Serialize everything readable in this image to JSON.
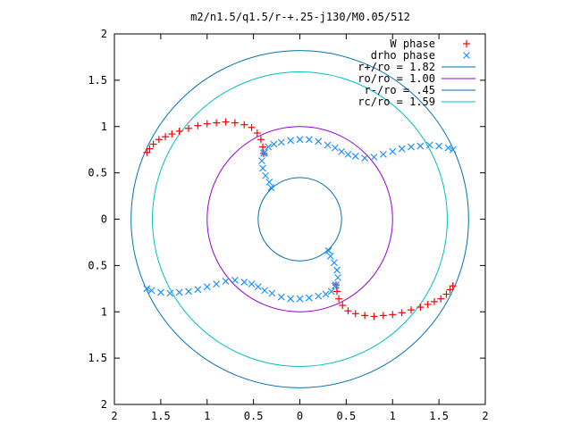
{
  "chart_data": {
    "type": "scatter",
    "title": "m2/n1.5/q1.5/r-+.25-j130/M0.05/512",
    "xlabel": "",
    "ylabel": "",
    "xlim": [
      -2,
      2
    ],
    "ylim": [
      -2,
      2
    ],
    "x_tick_values": [
      -2,
      -1.5,
      -1,
      -0.5,
      0,
      0.5,
      1,
      1.5,
      2
    ],
    "y_tick_values": [
      -2,
      -1.5,
      -1,
      -0.5,
      0,
      0.5,
      1,
      1.5,
      2
    ],
    "x_tick_labels": [
      "2",
      "1.5",
      "1",
      "0.5",
      "0",
      "0.5",
      "1",
      "1.5",
      "2"
    ],
    "y_tick_labels": [
      "2",
      "1.5",
      "1",
      "0.5",
      "0",
      "0.5",
      "1",
      "1.5",
      "2"
    ],
    "grid": false,
    "legend_position": "top-right",
    "circles": [
      {
        "name": "r+/ro = 1.82",
        "radius": 1.82,
        "color": "#0072b2"
      },
      {
        "name": "ro/ro = 1.00",
        "radius": 1.0,
        "color": "#9400d3"
      },
      {
        "name": "r-/ro = .45",
        "radius": 0.45,
        "color": "#0072b2"
      },
      {
        "name": "rc/ro = 1.59",
        "radius": 1.59,
        "color": "#00c0c0"
      }
    ],
    "series": [
      {
        "name": "W phase",
        "marker": "+",
        "color": "#ff0000",
        "points": [
          [
            -1.65,
            0.72
          ],
          [
            -1.62,
            0.76
          ],
          [
            -1.58,
            0.81
          ],
          [
            -1.52,
            0.86
          ],
          [
            -1.45,
            0.89
          ],
          [
            -1.38,
            0.92
          ],
          [
            -1.3,
            0.95
          ],
          [
            -1.2,
            0.98
          ],
          [
            -1.1,
            1.01
          ],
          [
            -1.0,
            1.03
          ],
          [
            -0.9,
            1.04
          ],
          [
            -0.8,
            1.05
          ],
          [
            -0.7,
            1.04
          ],
          [
            -0.6,
            1.02
          ],
          [
            -0.52,
            0.99
          ],
          [
            -0.46,
            0.93
          ],
          [
            -0.42,
            0.86
          ],
          [
            -0.4,
            0.78
          ],
          [
            -0.39,
            0.71
          ],
          [
            1.65,
            -0.72
          ],
          [
            1.62,
            -0.76
          ],
          [
            1.58,
            -0.81
          ],
          [
            1.52,
            -0.86
          ],
          [
            1.45,
            -0.89
          ],
          [
            1.38,
            -0.92
          ],
          [
            1.3,
            -0.95
          ],
          [
            1.2,
            -0.98
          ],
          [
            1.1,
            -1.01
          ],
          [
            1.0,
            -1.03
          ],
          [
            0.9,
            -1.04
          ],
          [
            0.8,
            -1.05
          ],
          [
            0.7,
            -1.04
          ],
          [
            0.6,
            -1.02
          ],
          [
            0.52,
            -0.99
          ],
          [
            0.46,
            -0.93
          ],
          [
            0.42,
            -0.86
          ],
          [
            0.4,
            -0.78
          ],
          [
            0.39,
            -0.71
          ]
        ]
      },
      {
        "name": "drho phase",
        "marker": "x",
        "color": "#1e90ff",
        "points": [
          [
            -0.39,
            0.71
          ],
          [
            -0.41,
            0.63
          ],
          [
            -0.4,
            0.55
          ],
          [
            -0.37,
            0.47
          ],
          [
            -0.33,
            0.4
          ],
          [
            -0.31,
            0.34
          ],
          [
            -0.38,
            0.72
          ],
          [
            -0.34,
            0.78
          ],
          [
            -0.28,
            0.81
          ],
          [
            -0.2,
            0.83
          ],
          [
            -0.1,
            0.85
          ],
          [
            0.0,
            0.86
          ],
          [
            0.1,
            0.86
          ],
          [
            0.2,
            0.84
          ],
          [
            0.3,
            0.8
          ],
          [
            0.38,
            0.77
          ],
          [
            0.45,
            0.73
          ],
          [
            0.52,
            0.7
          ],
          [
            0.6,
            0.68
          ],
          [
            0.7,
            0.66
          ],
          [
            0.8,
            0.67
          ],
          [
            0.9,
            0.7
          ],
          [
            1.0,
            0.73
          ],
          [
            1.1,
            0.76
          ],
          [
            1.2,
            0.78
          ],
          [
            1.3,
            0.79
          ],
          [
            1.4,
            0.8
          ],
          [
            1.5,
            0.79
          ],
          [
            1.6,
            0.77
          ],
          [
            1.65,
            0.75
          ],
          [
            0.39,
            -0.71
          ],
          [
            0.41,
            -0.63
          ],
          [
            0.4,
            -0.55
          ],
          [
            0.37,
            -0.47
          ],
          [
            0.33,
            -0.4
          ],
          [
            0.31,
            -0.34
          ],
          [
            0.38,
            -0.72
          ],
          [
            0.34,
            -0.78
          ],
          [
            0.28,
            -0.81
          ],
          [
            0.2,
            -0.83
          ],
          [
            0.1,
            -0.85
          ],
          [
            0.0,
            -0.86
          ],
          [
            -0.1,
            -0.86
          ],
          [
            -0.2,
            -0.84
          ],
          [
            -0.3,
            -0.8
          ],
          [
            -0.38,
            -0.77
          ],
          [
            -0.45,
            -0.73
          ],
          [
            -0.52,
            -0.7
          ],
          [
            -0.6,
            -0.68
          ],
          [
            -0.7,
            -0.66
          ],
          [
            -0.8,
            -0.67
          ],
          [
            -0.9,
            -0.7
          ],
          [
            -1.0,
            -0.73
          ],
          [
            -1.1,
            -0.76
          ],
          [
            -1.2,
            -0.78
          ],
          [
            -1.3,
            -0.79
          ],
          [
            -1.4,
            -0.8
          ],
          [
            -1.5,
            -0.79
          ],
          [
            -1.6,
            -0.77
          ],
          [
            -1.65,
            -0.75
          ]
        ]
      }
    ]
  }
}
